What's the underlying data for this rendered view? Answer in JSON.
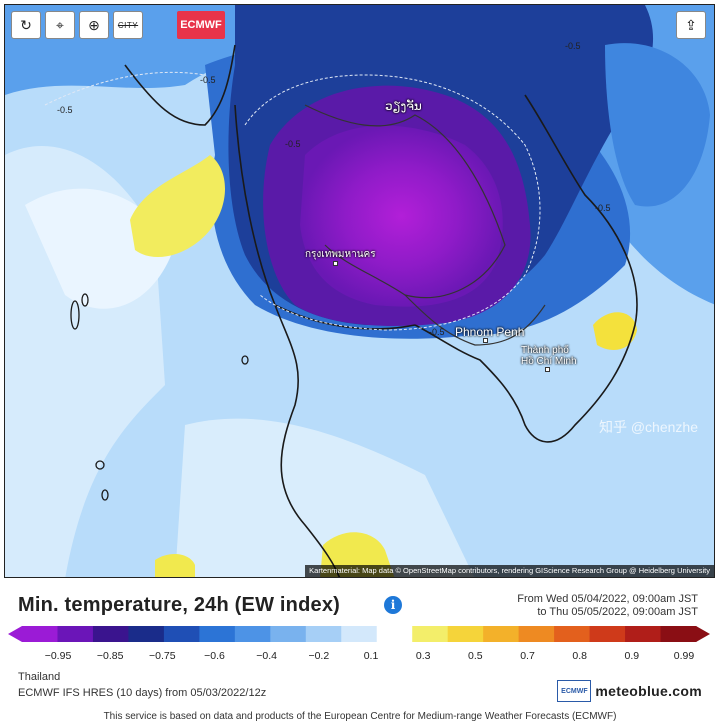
{
  "toolbar": {
    "refresh_icon": "↻",
    "locate_icon": "⌖",
    "zoom_icon": "⊕",
    "city_toggle_label": "CITY",
    "source_badge": "ECMWF",
    "share_icon": "⇪"
  },
  "map": {
    "attribution": "Kartenmaterial: Map data © OpenStreetMap contributors, rendering GIScience Research Group @ Heidelberg University",
    "cities": [
      {
        "name": "ວຽງຈັນ",
        "dot": false
      },
      {
        "name": "กรุงเทพมหานคร",
        "dot": true
      },
      {
        "name": "Phnom Penh",
        "dot": true
      },
      {
        "name": "Thành phố\nHồ Chí Minh",
        "dot": true
      }
    ],
    "contour_labels": [
      "-0.5",
      "-0.5",
      "-0.5",
      "-0.5",
      "-0.5",
      "-0.5"
    ],
    "watermark": "知乎 @chenzhe"
  },
  "legend": {
    "title": "Min. temperature, 24h (EW index)",
    "time_from": "From Wed 05/04/2022, 09:00am JST",
    "time_to": "to Thu 05/05/2022, 09:00am JST",
    "ticks": [
      "−0.95",
      "−0.85",
      "−0.75",
      "−0.6",
      "−0.4",
      "−0.2",
      "0.1",
      "0.3",
      "0.5",
      "0.7",
      "0.8",
      "0.9",
      "0.99"
    ],
    "colors": [
      "#9b1bd6",
      "#6b15b8",
      "#3a148e",
      "#1a2c8a",
      "#1f4fb5",
      "#2c74d6",
      "#4d93e6",
      "#79b2ee",
      "#a6cff6",
      "#d3e8fb",
      "#ffffff",
      "#f3ee6a",
      "#f5d43a",
      "#f3b12a",
      "#ee8a22",
      "#e3601d",
      "#cf3a1a",
      "#b01e19",
      "#8a0e14"
    ]
  },
  "footer": {
    "region": "Thailand",
    "model": "ECMWF IFS HRES (10 days) from 05/03/2022/12z",
    "logo_ecmwf": "ECMWF",
    "logo_meteo": "meteoblue.com",
    "disclaimer": "This service is based on data and products of the European Centre for Medium-range Weather Forecasts (ECMWF)"
  }
}
